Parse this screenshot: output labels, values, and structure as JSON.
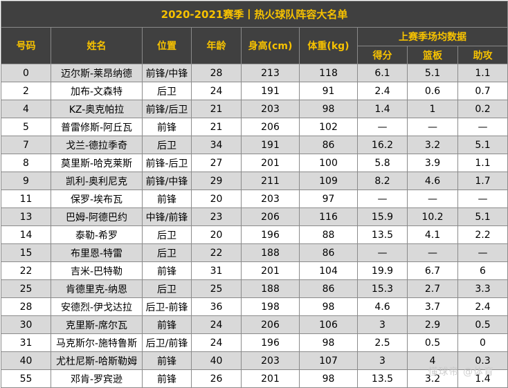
{
  "title": "2020-2021赛季丨热火球队阵容大名单",
  "headers": {
    "number": "号码",
    "name": "姓名",
    "position": "位置",
    "age": "年龄",
    "height": "身高(cm)",
    "weight": "体重(kg)",
    "stats_group": "上赛季场均数据",
    "points": "得分",
    "rebounds": "篮板",
    "assists": "助攻"
  },
  "rows": [
    {
      "number": "0",
      "name": "迈尔斯-莱昂纳德",
      "position": "前锋/中锋",
      "age": "28",
      "height": "213",
      "weight": "118",
      "points": "6.1",
      "rebounds": "5.1",
      "assists": "1.1"
    },
    {
      "number": "2",
      "name": "加布-文森特",
      "position": "后卫",
      "age": "24",
      "height": "191",
      "weight": "91",
      "points": "2.4",
      "rebounds": "0.6",
      "assists": "0.7"
    },
    {
      "number": "4",
      "name": "KZ-奥克帕拉",
      "position": "前锋/后卫",
      "age": "21",
      "height": "203",
      "weight": "98",
      "points": "1.4",
      "rebounds": "1",
      "assists": "0.2"
    },
    {
      "number": "5",
      "name": "普雷修斯-阿丘瓦",
      "position": "前锋",
      "age": "21",
      "height": "206",
      "weight": "102",
      "points": "—",
      "rebounds": "—",
      "assists": "—"
    },
    {
      "number": "7",
      "name": "戈兰-德拉季奇",
      "position": "后卫",
      "age": "34",
      "height": "191",
      "weight": "86",
      "points": "16.2",
      "rebounds": "3.2",
      "assists": "5.1"
    },
    {
      "number": "8",
      "name": "莫里斯-哈克莱斯",
      "position": "前锋-后卫",
      "age": "27",
      "height": "201",
      "weight": "100",
      "points": "5.8",
      "rebounds": "3.9",
      "assists": "1.1"
    },
    {
      "number": "9",
      "name": "凯利-奥利尼克",
      "position": "前锋/中锋",
      "age": "29",
      "height": "211",
      "weight": "109",
      "points": "8.2",
      "rebounds": "4.6",
      "assists": "1.7"
    },
    {
      "number": "11",
      "name": "保罗-埃布瓦",
      "position": "前锋",
      "age": "20",
      "height": "203",
      "weight": "97",
      "points": "—",
      "rebounds": "—",
      "assists": "—"
    },
    {
      "number": "13",
      "name": "巴姆-阿德巴约",
      "position": "中锋/前锋",
      "age": "23",
      "height": "206",
      "weight": "116",
      "points": "15.9",
      "rebounds": "10.2",
      "assists": "5.1"
    },
    {
      "number": "14",
      "name": "泰勒-希罗",
      "position": "后卫",
      "age": "20",
      "height": "196",
      "weight": "88",
      "points": "13.5",
      "rebounds": "4.1",
      "assists": "2.2"
    },
    {
      "number": "15",
      "name": "布里恩-特雷",
      "position": "后卫",
      "age": "22",
      "height": "188",
      "weight": "86",
      "points": "—",
      "rebounds": "—",
      "assists": "—"
    },
    {
      "number": "22",
      "name": "吉米-巴特勒",
      "position": "前锋",
      "age": "31",
      "height": "201",
      "weight": "104",
      "points": "19.9",
      "rebounds": "6.7",
      "assists": "6"
    },
    {
      "number": "25",
      "name": "肯德里克-纳恩",
      "position": "后卫",
      "age": "25",
      "height": "188",
      "weight": "86",
      "points": "15.3",
      "rebounds": "2.7",
      "assists": "3.3"
    },
    {
      "number": "28",
      "name": "安德烈-伊戈达拉",
      "position": "后卫-前锋",
      "age": "36",
      "height": "198",
      "weight": "98",
      "points": "4.6",
      "rebounds": "3.7",
      "assists": "2.4"
    },
    {
      "number": "30",
      "name": "克里斯-席尔瓦",
      "position": "前锋",
      "age": "24",
      "height": "206",
      "weight": "106",
      "points": "3",
      "rebounds": "2.9",
      "assists": "0.5"
    },
    {
      "number": "31",
      "name": "马克斯尔-施特鲁斯",
      "position": "后卫/前锋",
      "age": "24",
      "height": "196",
      "weight": "98",
      "points": "2.5",
      "rebounds": "0.5",
      "assists": "0"
    },
    {
      "number": "40",
      "name": "尤杜尼斯-哈斯勒姆",
      "position": "前锋",
      "age": "40",
      "height": "203",
      "weight": "107",
      "points": "3",
      "rebounds": "4",
      "assists": "0.3"
    },
    {
      "number": "55",
      "name": "邓肯-罗宾逊",
      "position": "前锋",
      "age": "26",
      "height": "201",
      "weight": "98",
      "points": "13.5",
      "rebounds": "3.2",
      "assists": "1.4"
    }
  ],
  "watermark": "懂球帝 @体育"
}
